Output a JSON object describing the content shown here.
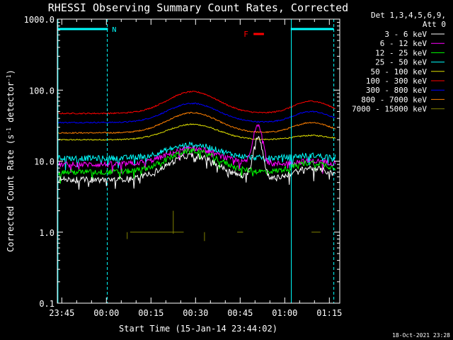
{
  "chart_data": {
    "type": "line",
    "title": "RHESSI Observing Summary Count Rates, Corrected",
    "xlabel": "Start Time (15-Jan-14 23:44:02)",
    "ylabel": "Corrected Count Rate (s⁻¹ detector⁻¹)",
    "ylabel_parts": [
      "Corrected Count Rate (s",
      "-1",
      " detector",
      "-1",
      ")"
    ],
    "yscale": "log",
    "ylim": [
      0.1,
      1000
    ],
    "xlim_minutes": [
      -1.5,
      93.5
    ],
    "y_ticks": [
      {
        "value": 1000,
        "label": "1000.0"
      },
      {
        "value": 100,
        "label": "100.0"
      },
      {
        "value": 10,
        "label": "10.0"
      },
      {
        "value": 1,
        "label": "1.0"
      },
      {
        "value": 0.1,
        "label": "0.1"
      }
    ],
    "x_ticks": [
      {
        "minutes": 0,
        "label": "23:45"
      },
      {
        "minutes": 15,
        "label": "00:00"
      },
      {
        "minutes": 30,
        "label": "00:15"
      },
      {
        "minutes": 45,
        "label": "00:30"
      },
      {
        "minutes": 60,
        "label": "00:45"
      },
      {
        "minutes": 75,
        "label": "01:00"
      },
      {
        "minutes": 90,
        "label": "01:15"
      }
    ],
    "legend_header": [
      "Det 1,3,4,5,6,9,",
      "Att 0"
    ],
    "legend_position": "right",
    "footer_date": "18-Oct-2021 23:28",
    "series": [
      {
        "name": "3 - 6 keV",
        "color": "#ffffff",
        "base": 5.5,
        "peak": 12,
        "late_peak": 8,
        "flare": 22
      },
      {
        "name": "6 - 12 keV",
        "color": "#ff00ff",
        "base": 9,
        "peak": 15,
        "late_peak": 10,
        "flare": 33
      },
      {
        "name": "12 - 25 keV",
        "color": "#00ff00",
        "base": 7,
        "peak": 14,
        "late_peak": 9.5,
        "flare": 7
      },
      {
        "name": "25 - 50 keV",
        "color": "#00ffff",
        "base": 11,
        "peak": 17,
        "late_peak": 12,
        "flare": 11
      },
      {
        "name": "50 - 100 keV",
        "color": "#dddd00",
        "base": 20,
        "peak": 33,
        "late_peak": 23,
        "flare": 20
      },
      {
        "name": "100 - 300 keV",
        "color": "#ff0000",
        "base": 47,
        "peak": 95,
        "late_peak": 70,
        "flare": 47
      },
      {
        "name": "300 - 800 keV",
        "color": "#0000ff",
        "base": 35,
        "peak": 65,
        "late_peak": 50,
        "flare": 35
      },
      {
        "name": "800 - 7000 keV",
        "color": "#ff7f00",
        "base": 25,
        "peak": 48,
        "late_peak": 35,
        "flare": 25
      },
      {
        "name": "7000 - 15000 keV",
        "color": "#808000",
        "base": 1.0,
        "peak": 2.0,
        "late_peak": 1.0,
        "flare": 1.0
      }
    ],
    "markers": {
      "night_bar_color": "#00ffff",
      "night_bars": [
        {
          "start": -1.5,
          "end": 15.5,
          "label": "N"
        },
        {
          "start": 77,
          "end": 91.5,
          "label": ""
        }
      ],
      "saa_lines": [
        -1.3,
        15.3,
        77.2,
        91.5
      ],
      "flare_label": "F",
      "flare_color": "#ff0000",
      "flare_span": [
        64.5,
        68
      ]
    }
  }
}
